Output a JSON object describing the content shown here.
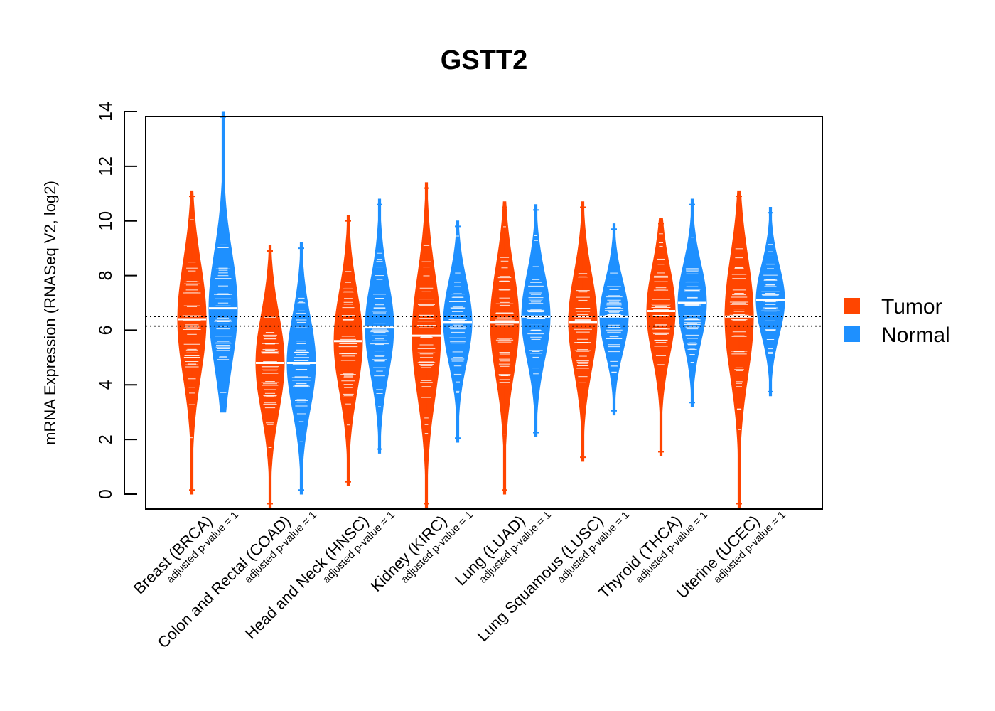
{
  "chart_data": {
    "type": "violin",
    "title": "GSTT2",
    "ylabel": "mRNA Expression (RNASeq V2, log2)",
    "xlabel": "",
    "ylim": [
      -0.5,
      14.2
    ],
    "yticks": [
      0,
      2,
      4,
      6,
      8,
      10,
      12,
      14
    ],
    "reference_lines": [
      6.5,
      6.15
    ],
    "legend": {
      "position": "right",
      "entries": [
        {
          "name": "Tumor",
          "color": "#FF4500"
        },
        {
          "name": "Normal",
          "color": "#1E90FF"
        }
      ]
    },
    "groups": [
      {
        "category": "Breast (BRCA)",
        "pvalue_label": "adjusted p-value = 1",
        "tumor": {
          "min": 0.0,
          "max": 11.1,
          "median": 6.4
        },
        "normal": {
          "min": 3.0,
          "max": 14.0,
          "median": 6.8
        }
      },
      {
        "category": "Colon and Rectal (COAD)",
        "pvalue_label": "adjusted p-value = 1",
        "tumor": {
          "min": -0.5,
          "max": 9.1,
          "median": 4.8
        },
        "normal": {
          "min": 0.0,
          "max": 9.2,
          "median": 4.8
        }
      },
      {
        "category": "Head and Neck (HNSC)",
        "pvalue_label": "adjusted p-value = 1",
        "tumor": {
          "min": 0.3,
          "max": 10.2,
          "median": 5.6
        },
        "normal": {
          "min": 1.5,
          "max": 10.8,
          "median": 6.1
        }
      },
      {
        "category": "Kidney (KIRC)",
        "pvalue_label": "adjusted p-value = 1",
        "tumor": {
          "min": -0.5,
          "max": 11.4,
          "median": 5.8
        },
        "normal": {
          "min": 1.9,
          "max": 10.0,
          "median": 6.3
        }
      },
      {
        "category": "Lung (LUAD)",
        "pvalue_label": "adjusted p-value = 1",
        "tumor": {
          "min": 0.0,
          "max": 10.7,
          "median": 6.3
        },
        "normal": {
          "min": 2.1,
          "max": 10.6,
          "median": 6.5
        }
      },
      {
        "category": "Lung Squamous (LUSC)",
        "pvalue_label": "adjusted p-value = 1",
        "tumor": {
          "min": 1.2,
          "max": 10.7,
          "median": 6.3
        },
        "normal": {
          "min": 2.9,
          "max": 9.9,
          "median": 6.5
        }
      },
      {
        "category": "Thyroid (THCA)",
        "pvalue_label": "adjusted p-value = 1",
        "tumor": {
          "min": 1.4,
          "max": 10.1,
          "median": 6.7
        },
        "normal": {
          "min": 3.2,
          "max": 10.8,
          "median": 7.0
        }
      },
      {
        "category": "Uterine (UCEC)",
        "pvalue_label": "adjusted p-value = 1",
        "tumor": {
          "min": -0.5,
          "max": 11.1,
          "median": 6.5
        },
        "normal": {
          "min": 3.6,
          "max": 10.5,
          "median": 7.1
        }
      }
    ],
    "colors": {
      "tumor": "#FF4500",
      "normal": "#1E90FF",
      "median": "#FFFFFF"
    }
  }
}
